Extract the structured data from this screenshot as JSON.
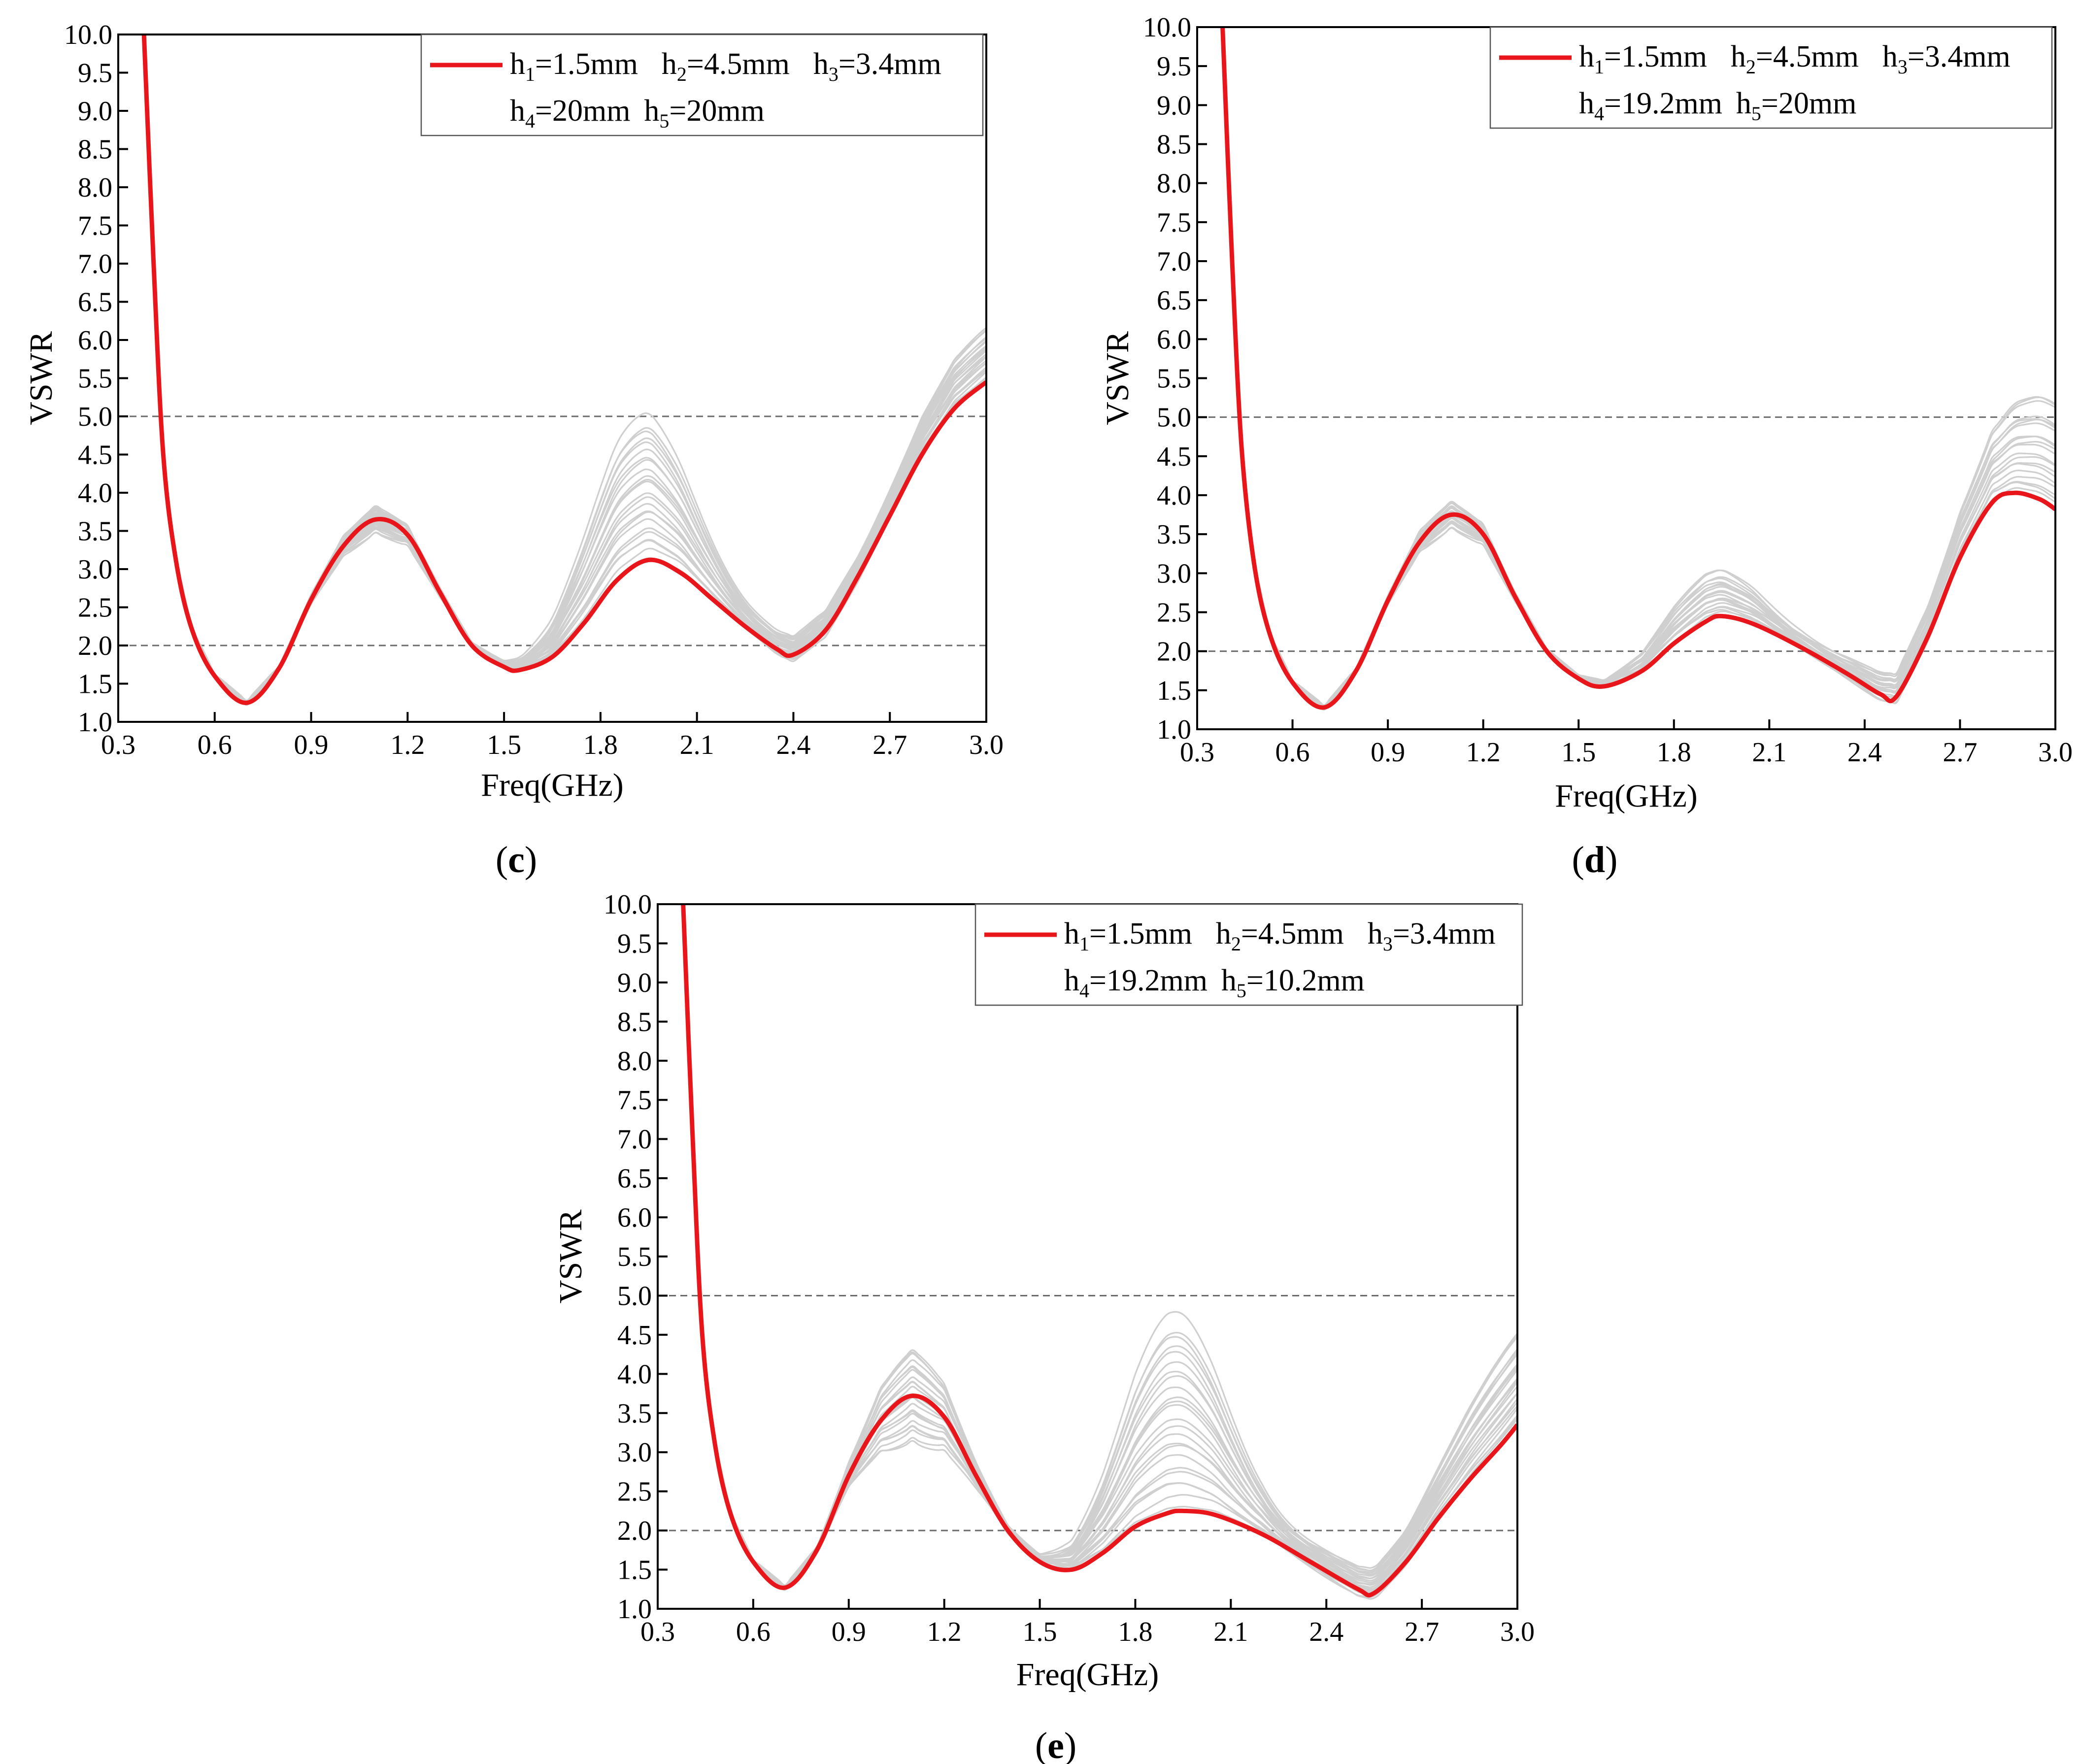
{
  "colors": {
    "highlight": "#e8161b",
    "background_curves": "#cfcfcf",
    "reference_line": "#6b6b6b",
    "axis": "#000000"
  },
  "chart_data": [
    {
      "panel": "c",
      "type": "line",
      "xlabel": "Freq(GHz)",
      "ylabel": "VSWR",
      "xlim": [
        0.3,
        3.0
      ],
      "ylim": [
        1.0,
        10.0
      ],
      "xticks": [
        "0.3",
        "0.6",
        "0.9",
        "1.2",
        "1.5",
        "1.8",
        "2.1",
        "2.4",
        "2.7",
        "3.0"
      ],
      "yticks": [
        "1.0",
        "1.5",
        "2.0",
        "2.5",
        "3.0",
        "3.5",
        "4.0",
        "4.5",
        "5.0",
        "5.5",
        "6.0",
        "6.5",
        "7.0",
        "7.5",
        "8.0",
        "8.5",
        "9.0",
        "9.5",
        "10.0"
      ],
      "reference_lines": [
        2.0,
        5.0
      ],
      "legend": {
        "position": "top-right",
        "row1": [
          {
            "base": "h",
            "sub": "1",
            "rest": "=1.5mm"
          },
          {
            "base": "h",
            "sub": "2",
            "rest": "=4.5mm"
          },
          {
            "base": "h",
            "sub": "3",
            "rest": "=3.4mm"
          }
        ],
        "row2": [
          {
            "base": "h",
            "sub": "4",
            "rest": "=20mm"
          },
          {
            "base": "h",
            "sub": "5",
            "rest": "=20mm"
          }
        ]
      },
      "highlight_series": {
        "x": [
          0.38,
          0.41,
          0.44,
          0.48,
          0.53,
          0.6,
          0.7,
          0.8,
          0.9,
          1.0,
          1.1,
          1.2,
          1.3,
          1.4,
          1.5,
          1.55,
          1.65,
          1.75,
          1.85,
          1.95,
          2.05,
          2.15,
          2.25,
          2.35,
          2.4,
          2.5,
          2.6,
          2.7,
          2.8,
          2.9,
          3.0
        ],
        "y": [
          10.0,
          7.0,
          4.5,
          3.1,
          2.2,
          1.6,
          1.25,
          1.7,
          2.6,
          3.3,
          3.65,
          3.45,
          2.7,
          2.0,
          1.72,
          1.68,
          1.85,
          2.3,
          2.85,
          3.12,
          2.95,
          2.6,
          2.25,
          1.95,
          1.88,
          2.2,
          2.9,
          3.7,
          4.5,
          5.1,
          5.45
        ]
      },
      "variation": {
        "count": 24,
        "peak2_max": 5.2,
        "peak3_max": 6.2
      }
    },
    {
      "panel": "d",
      "type": "line",
      "xlabel": "Freq(GHz)",
      "ylabel": "VSWR",
      "xlim": [
        0.3,
        3.0
      ],
      "ylim": [
        1.0,
        10.0
      ],
      "xticks": [
        "0.3",
        "0.6",
        "0.9",
        "1.2",
        "1.5",
        "1.8",
        "2.1",
        "2.4",
        "2.7",
        "3.0"
      ],
      "yticks": [
        "1.0",
        "1.5",
        "2.0",
        "2.5",
        "3.0",
        "3.5",
        "4.0",
        "4.5",
        "5.0",
        "5.5",
        "6.0",
        "6.5",
        "7.0",
        "7.5",
        "8.0",
        "8.5",
        "9.0",
        "9.5",
        "10.0"
      ],
      "reference_lines": [
        2.0,
        5.0
      ],
      "legend": {
        "position": "top-right",
        "row1": [
          {
            "base": "h",
            "sub": "1",
            "rest": "=1.5mm"
          },
          {
            "base": "h",
            "sub": "2",
            "rest": "=4.5mm"
          },
          {
            "base": "h",
            "sub": "3",
            "rest": "=3.4mm"
          }
        ],
        "row2": [
          {
            "base": "h",
            "sub": "4",
            "rest": "=19.2mm"
          },
          {
            "base": "h",
            "sub": "5",
            "rest": "=20mm"
          }
        ]
      },
      "highlight_series": {
        "x": [
          0.38,
          0.41,
          0.44,
          0.48,
          0.53,
          0.6,
          0.7,
          0.8,
          0.9,
          1.0,
          1.1,
          1.2,
          1.3,
          1.4,
          1.5,
          1.58,
          1.7,
          1.8,
          1.9,
          1.95,
          2.05,
          2.2,
          2.35,
          2.45,
          2.5,
          2.6,
          2.7,
          2.8,
          2.87,
          2.95,
          3.0
        ],
        "y": [
          10.0,
          7.0,
          4.6,
          3.1,
          2.2,
          1.6,
          1.28,
          1.75,
          2.65,
          3.4,
          3.75,
          3.5,
          2.7,
          2.0,
          1.65,
          1.55,
          1.75,
          2.1,
          2.38,
          2.45,
          2.35,
          2.05,
          1.7,
          1.45,
          1.42,
          2.2,
          3.2,
          3.9,
          4.03,
          3.95,
          3.82
        ]
      },
      "variation": {
        "count": 20,
        "peak2_max": 3.1,
        "peak3_max": 5.5
      }
    },
    {
      "panel": "e",
      "type": "line",
      "xlabel": "Freq(GHz)",
      "ylabel": "VSWR",
      "xlim": [
        0.3,
        3.0
      ],
      "ylim": [
        1.0,
        10.0
      ],
      "xticks": [
        "0.3",
        "0.6",
        "0.9",
        "1.2",
        "1.5",
        "1.8",
        "2.1",
        "2.4",
        "2.7",
        "3.0"
      ],
      "yticks": [
        "1.0",
        "1.5",
        "2.0",
        "2.5",
        "3.0",
        "3.5",
        "4.0",
        "4.5",
        "5.0",
        "5.5",
        "6.0",
        "6.5",
        "7.0",
        "7.5",
        "8.0",
        "8.5",
        "9.0",
        "9.5",
        "10.0"
      ],
      "reference_lines": [
        2.0,
        5.0
      ],
      "legend": {
        "position": "top-right",
        "row1": [
          {
            "base": "h",
            "sub": "1",
            "rest": "=1.5mm"
          },
          {
            "base": "h",
            "sub": "2",
            "rest": "=4.5mm"
          },
          {
            "base": "h",
            "sub": "3",
            "rest": "=3.4mm"
          }
        ],
        "row2": [
          {
            "base": "h",
            "sub": "4",
            "rest": "=19.2mm"
          },
          {
            "base": "h",
            "sub": "5",
            "rest": "=10.2mm"
          }
        ]
      },
      "highlight_series": {
        "x": [
          0.38,
          0.41,
          0.44,
          0.48,
          0.53,
          0.6,
          0.7,
          0.8,
          0.9,
          1.0,
          1.1,
          1.2,
          1.3,
          1.4,
          1.5,
          1.6,
          1.7,
          1.8,
          1.9,
          1.95,
          2.05,
          2.2,
          2.35,
          2.5,
          2.55,
          2.65,
          2.75,
          2.85,
          2.95,
          3.0
        ],
        "y": [
          10.0,
          7.0,
          4.5,
          3.1,
          2.2,
          1.6,
          1.27,
          1.75,
          2.7,
          3.4,
          3.72,
          3.45,
          2.7,
          2.0,
          1.6,
          1.5,
          1.72,
          2.05,
          2.22,
          2.25,
          2.2,
          1.95,
          1.6,
          1.25,
          1.2,
          1.6,
          2.15,
          2.65,
          3.1,
          3.35
        ]
      },
      "variation": {
        "count": 24,
        "peak2_max": 4.95,
        "peak3_max": 4.6
      }
    }
  ]
}
